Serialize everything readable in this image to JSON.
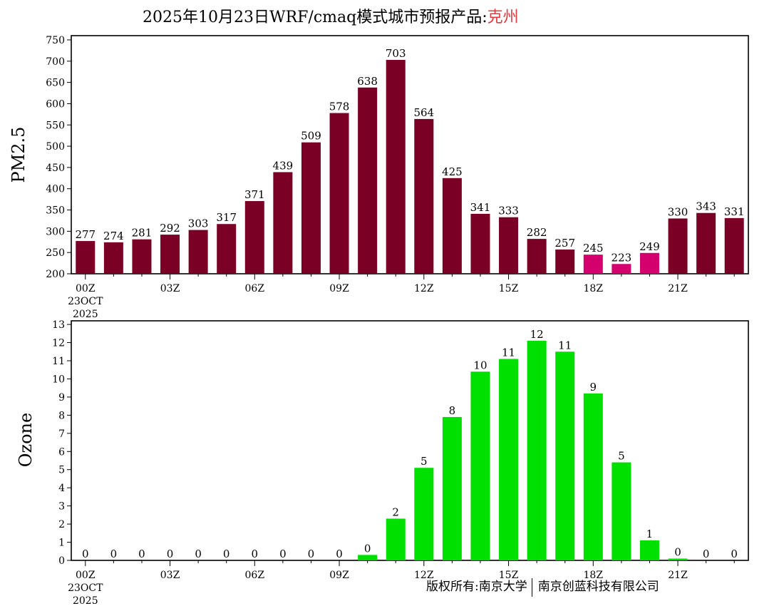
{
  "title": {
    "prefix": "2025年10月23日WRF/cmaq模式城市预报产品:",
    "city": "克州",
    "city_color": "#e8383d"
  },
  "footer": {
    "left": "版权所有:南京大学",
    "right": "南京创蓝科技有限公司"
  },
  "colors": {
    "pm25_bar": "#7a0026",
    "pm25_highlight": "#d4006e",
    "ozone_bar": "#00e000"
  },
  "chart_data": [
    {
      "type": "bar",
      "ylabel": "PM2.5",
      "ylim": [
        200,
        760
      ],
      "yticks": [
        200,
        250,
        300,
        350,
        400,
        450,
        500,
        550,
        600,
        650,
        700,
        750
      ],
      "xtick_labels": [
        "00Z",
        "03Z",
        "06Z",
        "09Z",
        "12Z",
        "15Z",
        "18Z",
        "21Z"
      ],
      "xtick_hours": [
        0,
        3,
        6,
        9,
        12,
        15,
        18,
        21
      ],
      "date_label": [
        "23OCT",
        "2025"
      ],
      "hours": [
        0,
        1,
        2,
        3,
        4,
        5,
        6,
        7,
        8,
        9,
        10,
        11,
        12,
        13,
        14,
        15,
        16,
        17,
        18,
        19,
        20,
        21,
        22,
        23
      ],
      "values": [
        277,
        274,
        281,
        292,
        303,
        317,
        371,
        439,
        509,
        578,
        638,
        703,
        564,
        425,
        341,
        333,
        282,
        257,
        245,
        223,
        249,
        330,
        343,
        331
      ],
      "highlight_hours": [
        18,
        19,
        20
      ],
      "grid": false
    },
    {
      "type": "bar",
      "ylabel": "Ozone",
      "ylim": [
        0,
        13.2
      ],
      "yticks": [
        0,
        1,
        2,
        3,
        4,
        5,
        6,
        7,
        8,
        9,
        10,
        11,
        12,
        13
      ],
      "xtick_labels": [
        "00Z",
        "03Z",
        "06Z",
        "09Z",
        "12Z",
        "15Z",
        "18Z",
        "21Z"
      ],
      "xtick_hours": [
        0,
        3,
        6,
        9,
        12,
        15,
        18,
        21
      ],
      "date_label": [
        "23OCT",
        "2025"
      ],
      "hours": [
        0,
        1,
        2,
        3,
        4,
        5,
        6,
        7,
        8,
        9,
        10,
        11,
        12,
        13,
        14,
        15,
        16,
        17,
        18,
        19,
        20,
        21,
        22,
        23
      ],
      "values": [
        0,
        0,
        0,
        0,
        0,
        0,
        0,
        0,
        0,
        0,
        0.3,
        2.3,
        5.1,
        7.9,
        10.4,
        11.1,
        12.1,
        11.5,
        9.2,
        5.4,
        1.1,
        0.1,
        0,
        0
      ],
      "value_labels": [
        "0",
        "0",
        "0",
        "0",
        "0",
        "0",
        "0",
        "0",
        "0",
        "0",
        "0",
        "2",
        "5",
        "8",
        "10",
        "11",
        "12",
        "11",
        "9",
        "5",
        "1",
        "0",
        "0",
        "0"
      ],
      "grid": false
    }
  ]
}
